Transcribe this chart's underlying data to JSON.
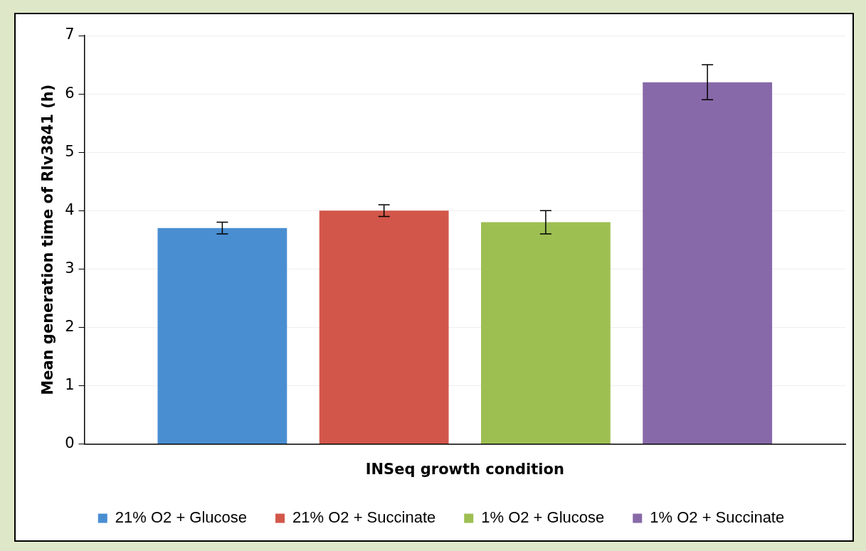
{
  "chart_data": {
    "type": "bar",
    "xlabel": "INSeq growth condition",
    "ylabel": "Mean generation time of Rlv3841 (h)",
    "categories": [
      null
    ],
    "series": [
      {
        "name": "21% O2 + Glucose",
        "color": "#4a8ed2",
        "values": [
          3.7
        ],
        "errors": [
          0.1
        ]
      },
      {
        "name": "21% O2 + Succinate",
        "color": "#d2574a",
        "values": [
          4.0
        ],
        "errors": [
          0.1
        ]
      },
      {
        "name": "1% O2 + Glucose",
        "color": "#9dbf52",
        "values": [
          3.8
        ],
        "errors": [
          0.2
        ]
      },
      {
        "name": "1% O2 + Succinate",
        "color": "#8769a9",
        "values": [
          6.2
        ],
        "errors": [
          0.3
        ]
      }
    ],
    "ylim": [
      0,
      7
    ],
    "yticks": [
      0,
      1,
      2,
      3,
      4,
      5,
      6,
      7
    ],
    "grid": "y",
    "legend": "bottom"
  }
}
